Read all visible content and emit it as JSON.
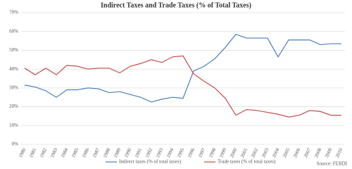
{
  "chart_data": {
    "type": "line",
    "title": "Indirect Taxes and Trade Taxes (% of Total Taxes)",
    "categories": [
      "1980",
      "1981",
      "1982",
      "1983",
      "1984",
      "1985",
      "1986",
      "1987",
      "1988",
      "1989",
      "1990",
      "1991",
      "1992",
      "1993",
      "1994",
      "1995",
      "1996",
      "1997",
      "1998",
      "1999",
      "2000",
      "2001",
      "2002",
      "2003",
      "2004",
      "2005",
      "2006",
      "2007",
      "2008",
      "2009",
      "2010"
    ],
    "series": [
      {
        "name": "Indirect taxes (% of total taxes)",
        "color": "#4a7ebb",
        "values": [
          31.5,
          30.5,
          28.5,
          25,
          29,
          29,
          30,
          29.5,
          27.5,
          28,
          26.5,
          25,
          22.5,
          24,
          25,
          24.5,
          39,
          41.5,
          45.5,
          51.5,
          58.5,
          56.5,
          56.5,
          56.5,
          46.5,
          55.5,
          55.5,
          55.5,
          53,
          53.5,
          53.5
        ]
      },
      {
        "name": "Trade taxes (% of total taxes)",
        "color": "#c0504d",
        "values": [
          40.5,
          37,
          40.5,
          37,
          42,
          41.5,
          40,
          40.5,
          40.5,
          38,
          41.5,
          43,
          45,
          43.5,
          46.5,
          47,
          37.5,
          33.5,
          30,
          24.5,
          15.5,
          18.5,
          18,
          17,
          16,
          14.5,
          15.5,
          18,
          17.5,
          15.5,
          15.5
        ]
      }
    ],
    "ylim": [
      0,
      70
    ],
    "yticks": [
      {
        "value": 0,
        "label": "0%"
      },
      {
        "value": 10,
        "label": "10%"
      },
      {
        "value": 20,
        "label": "20%"
      },
      {
        "value": 30,
        "label": "30%"
      },
      {
        "value": 40,
        "label": "40%"
      },
      {
        "value": 50,
        "label": "50%"
      },
      {
        "value": 60,
        "label": "60%"
      },
      {
        "value": 70,
        "label": "70%"
      }
    ],
    "grid": true,
    "legend": "bottom",
    "source": "Source: FERDI"
  }
}
